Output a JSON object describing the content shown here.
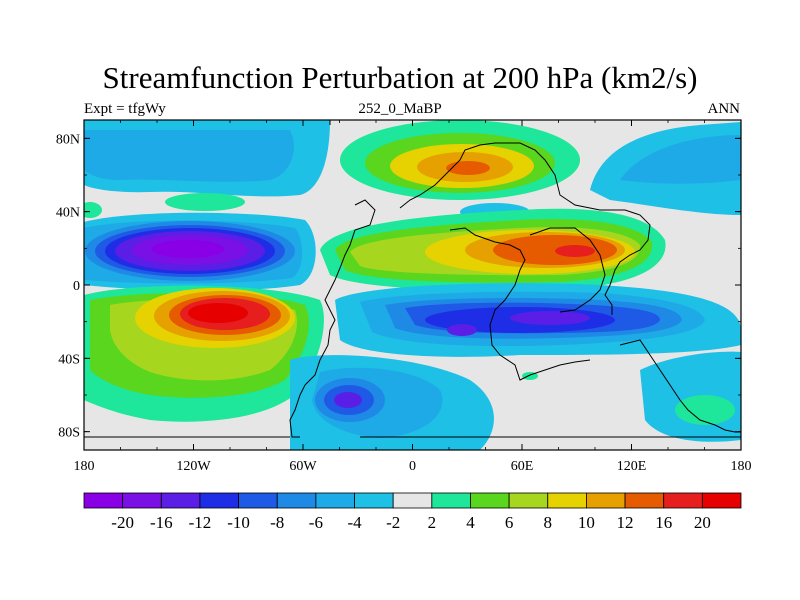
{
  "title": "Streamfunction Perturbation at 200 hPa (km2/s)",
  "subtitle_left": "Expt = tfgWy",
  "subtitle_center": "252_0_MaBP",
  "subtitle_right": "ANN",
  "x_ticks": [
    "180",
    "120W",
    "60W",
    "0",
    "60E",
    "120E",
    "180"
  ],
  "y_ticks": [
    "80N",
    "40N",
    "0",
    "40S",
    "80S"
  ],
  "colorbar": {
    "labels": [
      "-20",
      "-16",
      "-12",
      "-10",
      "-8",
      "-6",
      "-4",
      "-2",
      "2",
      "4",
      "6",
      "8",
      "10",
      "12",
      "16",
      "20"
    ],
    "colors": [
      "#8a00e6",
      "#7a0fe6",
      "#5a1ee6",
      "#1e2de6",
      "#1e5ae6",
      "#1e8ae6",
      "#1eaae6",
      "#1ec0e6",
      "#e6e6e6",
      "#1ee69a",
      "#5ad61e",
      "#a6d61e",
      "#e6d200",
      "#e6a000",
      "#e65a00",
      "#e61e1e",
      "#e60000"
    ]
  },
  "colors": {
    "background": "#e6e6e6",
    "coastline": "#000000"
  }
}
